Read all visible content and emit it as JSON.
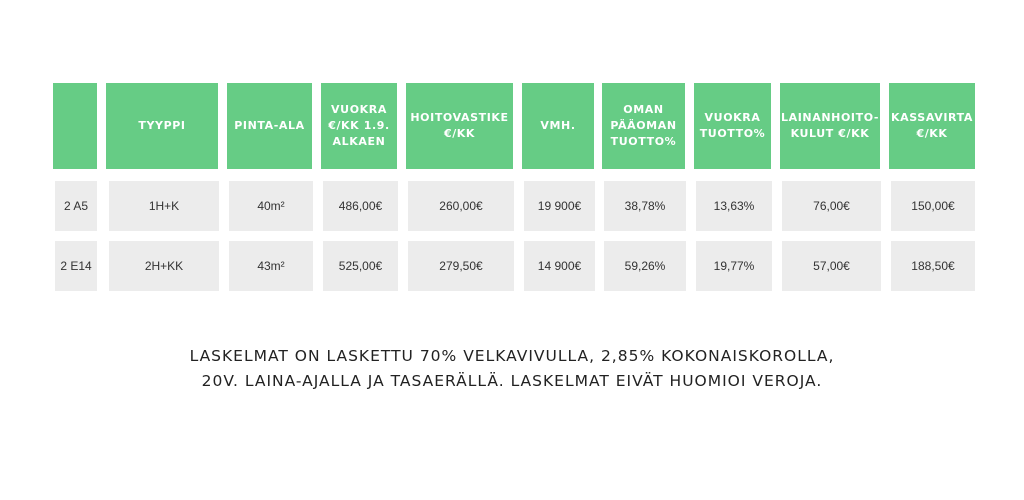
{
  "table": {
    "headers": [
      "",
      "TYYPPI",
      "PINTA-ALA",
      "VUOKRA\n€/KK 1.9.\nALKAEN",
      "HOITOVASTIKE\n€/KK",
      "VMH.",
      "OMAN\nPÄÄOMAN\nTUOTTO%",
      "VUOKRA\nTUOTTO%",
      "LAINANHOITO-\nKULUT €/KK",
      "KASSAVIRTA\n€/KK"
    ],
    "rows": [
      [
        "2 A5",
        "1H+K",
        "40m²",
        "486,00€",
        "260,00€",
        "19 900€",
        "38,78%",
        "13,63%",
        "76,00€",
        "150,00€"
      ],
      [
        "2 E14",
        "2H+KK",
        "43m²",
        "525,00€",
        "279,50€",
        "14 900€",
        "59,26%",
        "19,77%",
        "57,00€",
        "188,50€"
      ]
    ]
  },
  "note": {
    "line1": "LASKELMAT ON LASKETTU 70% VELKAVIVULLA, 2,85% KOKONAISKOROLLA,",
    "line2": "20V. LAINA-AJALLA JA TASAERÄLLÄ. LASKELMAT EIVÄT HUOMIOI VEROJA."
  },
  "colors": {
    "header": "#66cc85",
    "cell": "#ececec"
  }
}
